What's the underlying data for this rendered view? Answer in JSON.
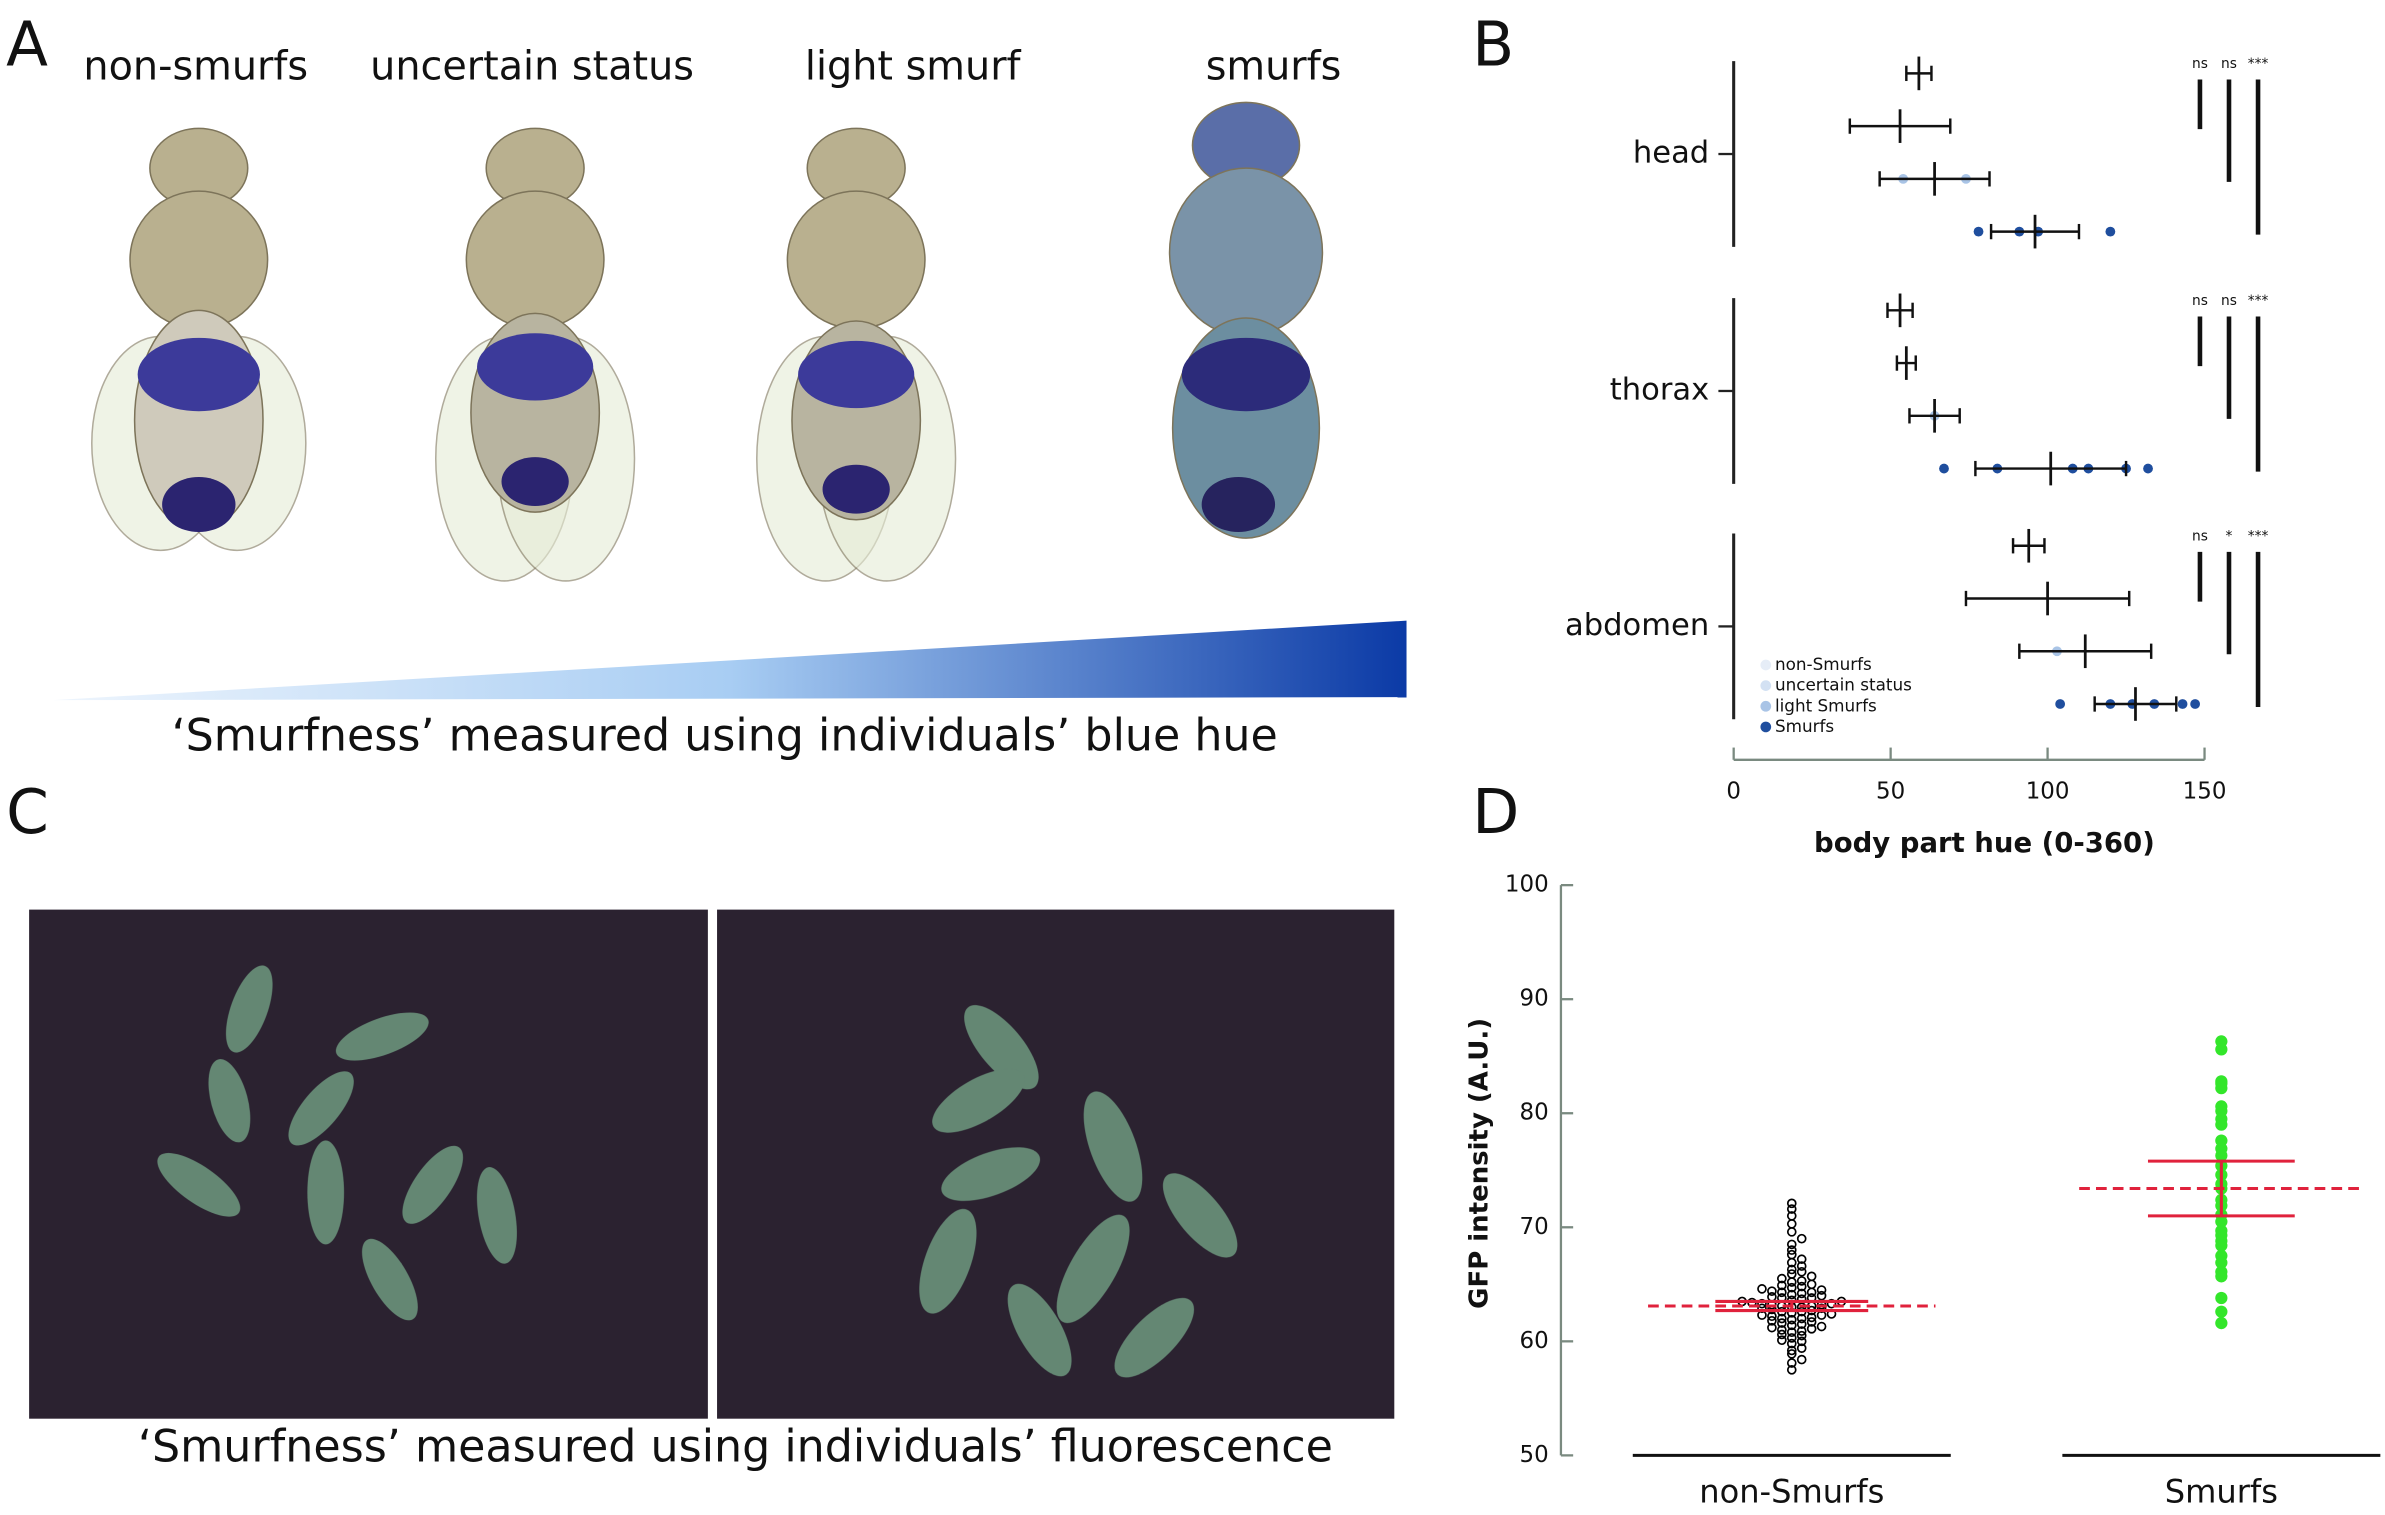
{
  "figure": {
    "panel_labels": [
      "A",
      "B",
      "C",
      "D"
    ],
    "panel_a": {
      "fly_labels": [
        "non-smurfs",
        "uncertain status",
        "light smurf",
        "smurfs"
      ],
      "caption": "‘Smurfness’ measured using individuals’ blue hue"
    },
    "panel_c": {
      "caption": "‘Smurfness’ measured using individuals’ fluorescence"
    }
  },
  "chart_data": [
    {
      "type": "dotplot",
      "categories": [
        "head",
        "thorax",
        "abdomen"
      ],
      "series": [
        {
          "name": "non-Smurfs",
          "color": "#e6edf7",
          "means": [
            59,
            53,
            94
          ],
          "errors": [
            4,
            4,
            5
          ],
          "points": [
            [],
            [],
            []
          ]
        },
        {
          "name": "uncertain status",
          "color": "#d3e1f3",
          "means": [
            53,
            55,
            100
          ],
          "errors": [
            16,
            3,
            26
          ],
          "points": [
            [],
            [],
            []
          ]
        },
        {
          "name": "light Smurfs",
          "color": "#a9c4e6",
          "means": [
            64,
            64,
            112
          ],
          "errors": [
            17.5,
            8,
            21
          ],
          "points": [
            [
              54,
              74
            ],
            [
              64
            ],
            [
              103
            ]
          ]
        },
        {
          "name": "Smurfs",
          "color": "#1f4e9e",
          "means": [
            96,
            101,
            128
          ],
          "errors": [
            14,
            24,
            13
          ],
          "points": [
            [
              78,
              91,
              97,
              120
            ],
            [
              67,
              84,
              108,
              113,
              125,
              132
            ],
            [
              104,
              120,
              127,
              134,
              143,
              147
            ]
          ]
        }
      ],
      "significance": [
        [
          "ns",
          "ns",
          "***"
        ],
        [
          "ns",
          "ns",
          "***"
        ],
        [
          "ns",
          "*",
          "***"
        ]
      ],
      "xlim": [
        0,
        150
      ],
      "xticks": [
        0,
        50,
        100,
        150
      ],
      "xlabel": "body part hue (0-360)"
    },
    {
      "type": "beeswarm",
      "categories": [
        "non-Smurfs",
        "Smurfs"
      ],
      "groups": [
        {
          "color": "#000000",
          "hollow": true,
          "mean": 63.1,
          "error": 0.4,
          "values": [
            57.5,
            58.1,
            58.4,
            58.9,
            59.2,
            59.4,
            59.8,
            60.0,
            60.1,
            60.3,
            60.5,
            60.6,
            60.8,
            60.9,
            61.0,
            61.1,
            61.2,
            61.3,
            61.4,
            61.5,
            61.6,
            61.7,
            61.8,
            61.9,
            62.0,
            62.0,
            62.1,
            62.2,
            62.3,
            62.3,
            62.4,
            62.5,
            62.6,
            62.6,
            62.7,
            62.8,
            62.9,
            62.9,
            63.0,
            63.0,
            63.1,
            63.1,
            63.2,
            63.2,
            63.3,
            63.3,
            63.4,
            63.5,
            63.5,
            63.6,
            63.7,
            63.8,
            63.8,
            63.9,
            64.0,
            64.1,
            64.2,
            64.3,
            64.3,
            64.4,
            64.5,
            64.6,
            64.7,
            64.8,
            64.9,
            65.0,
            65.2,
            65.3,
            65.5,
            65.7,
            65.9,
            66.1,
            66.3,
            66.6,
            66.9,
            67.2,
            67.6,
            68.0,
            68.5,
            69.0,
            69.6,
            70.3,
            71.0,
            71.6,
            72.1
          ]
        },
        {
          "color": "#33e62a",
          "hollow": false,
          "mean": 73.4,
          "error": 2.4,
          "values": [
            86.3,
            85.6,
            82.8,
            82.2,
            82.6,
            80.6,
            80.2,
            79.5,
            79.0,
            77.6,
            76.9,
            76.3,
            75.4,
            74.6,
            73.8,
            73.4,
            72.4,
            71.9,
            71.1,
            70.5,
            69.7,
            69.3,
            68.8,
            68.4,
            67.5,
            66.9,
            66.1,
            65.7,
            63.8,
            62.6,
            61.6
          ]
        }
      ],
      "mean_color": "#e0223c",
      "ylim": [
        50,
        100
      ],
      "yticks": [
        50,
        60,
        70,
        80,
        90,
        100
      ],
      "ylabel": "GFP intensity (A.U.)"
    }
  ]
}
